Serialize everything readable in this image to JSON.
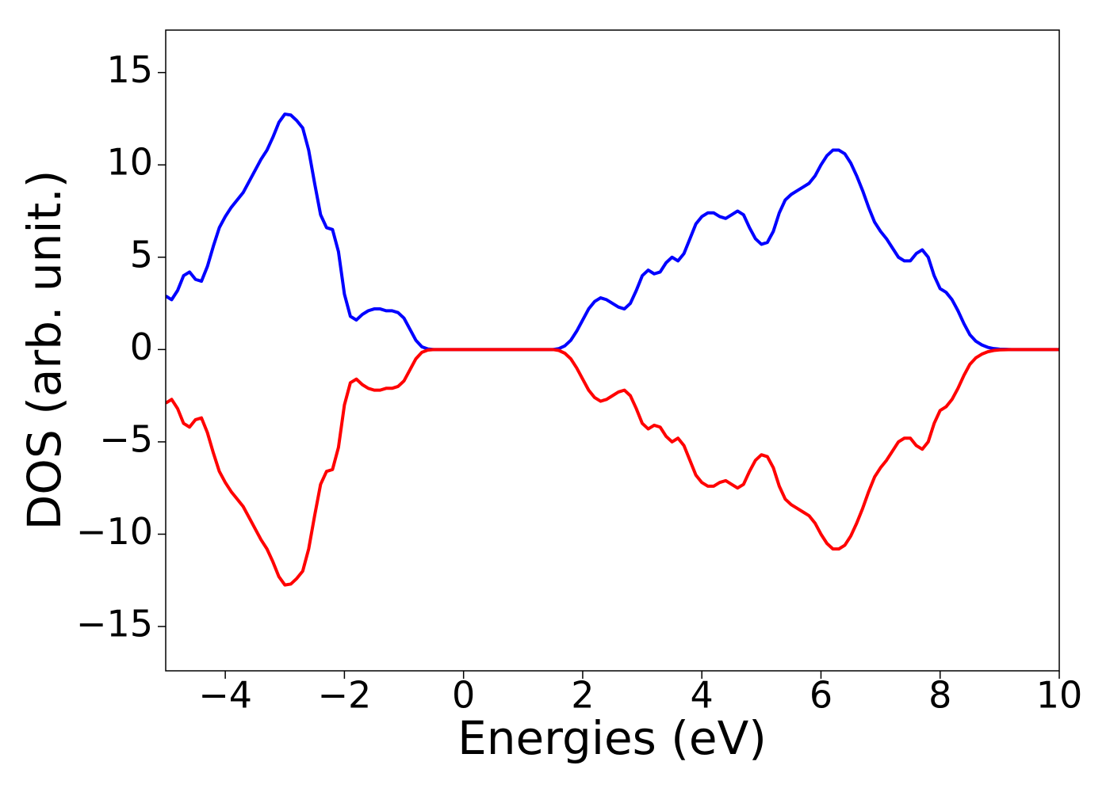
{
  "chart_data": {
    "type": "line",
    "xlabel": "Energies (eV)",
    "ylabel": "DOS (arb. unit.)",
    "x": [
      -5.0,
      -4.9,
      -4.8,
      -4.7,
      -4.6,
      -4.5,
      -4.4,
      -4.3,
      -4.2,
      -4.1,
      -4.0,
      -3.9,
      -3.8,
      -3.7,
      -3.6,
      -3.5,
      -3.4,
      -3.3,
      -3.2,
      -3.1,
      -3.0,
      -2.9,
      -2.8,
      -2.7,
      -2.6,
      -2.5,
      -2.4,
      -2.3,
      -2.2,
      -2.1,
      -2.0,
      -1.9,
      -1.8,
      -1.7,
      -1.6,
      -1.5,
      -1.4,
      -1.3,
      -1.2,
      -1.1,
      -1.0,
      -0.9,
      -0.8,
      -0.7,
      -0.6,
      -0.5,
      0,
      0.5,
      1.0,
      1.5,
      1.6,
      1.7,
      1.8,
      1.9,
      2.0,
      2.1,
      2.2,
      2.3,
      2.4,
      2.5,
      2.6,
      2.7,
      2.8,
      2.9,
      3.0,
      3.1,
      3.2,
      3.3,
      3.4,
      3.5,
      3.6,
      3.7,
      3.8,
      3.9,
      4.0,
      4.1,
      4.2,
      4.3,
      4.4,
      4.5,
      4.6,
      4.7,
      4.8,
      4.9,
      5.0,
      5.1,
      5.2,
      5.3,
      5.4,
      5.5,
      5.6,
      5.7,
      5.8,
      5.9,
      6.0,
      6.1,
      6.2,
      6.3,
      6.4,
      6.5,
      6.6,
      6.7,
      6.8,
      6.9,
      7.0,
      7.1,
      7.2,
      7.3,
      7.4,
      7.5,
      7.6,
      7.7,
      7.8,
      7.9,
      8.0,
      8.1,
      8.2,
      8.3,
      8.4,
      8.5,
      8.6,
      8.7,
      8.8,
      8.9,
      9.0,
      9.2,
      9.5,
      10
    ],
    "series": [
      {
        "color": "#0000ff",
        "values": [
          2.9,
          2.7,
          3.2,
          4.0,
          4.2,
          3.8,
          3.7,
          4.5,
          5.6,
          6.6,
          7.2,
          7.7,
          8.1,
          8.5,
          9.1,
          9.7,
          10.3,
          10.8,
          11.5,
          12.3,
          12.75,
          12.7,
          12.4,
          12.0,
          10.8,
          9.0,
          7.3,
          6.6,
          6.5,
          5.3,
          3.0,
          1.8,
          1.6,
          1.9,
          2.1,
          2.2,
          2.2,
          2.1,
          2.1,
          2.0,
          1.7,
          1.1,
          0.5,
          0.15,
          0.03,
          0,
          0,
          0,
          0,
          0,
          0.05,
          0.2,
          0.5,
          1.0,
          1.6,
          2.2,
          2.6,
          2.8,
          2.7,
          2.5,
          2.3,
          2.2,
          2.5,
          3.2,
          4.0,
          4.3,
          4.1,
          4.2,
          4.7,
          5.0,
          4.8,
          5.2,
          6.0,
          6.8,
          7.2,
          7.4,
          7.4,
          7.2,
          7.1,
          7.3,
          7.5,
          7.3,
          6.6,
          6.0,
          5.7,
          5.8,
          6.4,
          7.4,
          8.1,
          8.4,
          8.6,
          8.8,
          9.0,
          9.4,
          10.0,
          10.5,
          10.8,
          10.8,
          10.6,
          10.1,
          9.4,
          8.6,
          7.7,
          6.9,
          6.4,
          6.0,
          5.5,
          5.0,
          4.8,
          4.8,
          5.2,
          5.4,
          5.0,
          4.0,
          3.3,
          3.1,
          2.7,
          2.1,
          1.4,
          0.8,
          0.45,
          0.25,
          0.12,
          0.05,
          0.02,
          0,
          0,
          0
        ]
      },
      {
        "color": "#ff0000",
        "values": [
          -2.9,
          -2.7,
          -3.2,
          -4.0,
          -4.2,
          -3.8,
          -3.7,
          -4.5,
          -5.6,
          -6.6,
          -7.2,
          -7.7,
          -8.1,
          -8.5,
          -9.1,
          -9.7,
          -10.3,
          -10.8,
          -11.5,
          -12.3,
          -12.75,
          -12.7,
          -12.4,
          -12.0,
          -10.8,
          -9.0,
          -7.3,
          -6.6,
          -6.5,
          -5.3,
          -3.0,
          -1.8,
          -1.6,
          -1.9,
          -2.1,
          -2.2,
          -2.2,
          -2.1,
          -2.1,
          -2.0,
          -1.7,
          -1.1,
          -0.5,
          -0.15,
          -0.03,
          0,
          0,
          0,
          0,
          0,
          -0.05,
          -0.2,
          -0.5,
          -1.0,
          -1.6,
          -2.2,
          -2.6,
          -2.8,
          -2.7,
          -2.5,
          -2.3,
          -2.2,
          -2.5,
          -3.2,
          -4.0,
          -4.3,
          -4.1,
          -4.2,
          -4.7,
          -5.0,
          -4.8,
          -5.2,
          -6.0,
          -6.8,
          -7.2,
          -7.4,
          -7.4,
          -7.2,
          -7.1,
          -7.3,
          -7.5,
          -7.3,
          -6.6,
          -6.0,
          -5.7,
          -5.8,
          -6.4,
          -7.4,
          -8.1,
          -8.4,
          -8.6,
          -8.8,
          -9.0,
          -9.4,
          -10.0,
          -10.5,
          -10.8,
          -10.8,
          -10.6,
          -10.1,
          -9.4,
          -8.6,
          -7.7,
          -6.9,
          -6.4,
          -6.0,
          -5.5,
          -5.0,
          -4.8,
          -4.8,
          -5.2,
          -5.4,
          -5.0,
          -4.0,
          -3.3,
          -3.1,
          -2.7,
          -2.1,
          -1.4,
          -0.8,
          -0.45,
          -0.25,
          -0.12,
          -0.05,
          -0.02,
          0,
          0,
          0
        ]
      }
    ],
    "xlim": [
      -5,
      10
    ],
    "xticks": [
      {
        "value": -4,
        "label": "−4"
      },
      {
        "value": -2,
        "label": "−2"
      },
      0,
      2,
      4,
      6,
      8,
      10
    ],
    "ylim": [
      -17.4,
      17.3
    ],
    "yticks": [
      {
        "value": -15,
        "label": "−15"
      },
      {
        "value": -10,
        "label": "−10"
      },
      {
        "value": -5,
        "label": "−5"
      },
      0,
      5,
      10,
      15
    ],
    "grid": false
  }
}
